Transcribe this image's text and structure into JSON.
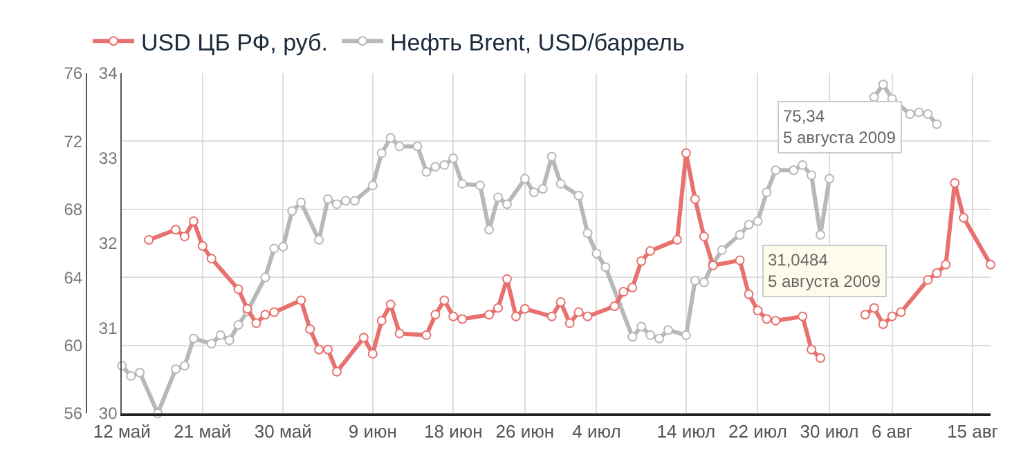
{
  "chart_data": {
    "type": "line",
    "series": [
      {
        "name": "USD ЦБ РФ, руб.",
        "color": "#e8716e",
        "axis": "y2",
        "x": [
          "2009-05-15",
          "2009-05-18",
          "2009-05-19",
          "2009-05-20",
          "2009-05-21",
          "2009-05-22",
          "2009-05-25",
          "2009-05-26",
          "2009-05-27",
          "2009-05-28",
          "2009-05-29",
          "2009-06-01",
          "2009-06-02",
          "2009-06-03",
          "2009-06-04",
          "2009-06-05",
          "2009-06-08",
          "2009-06-09",
          "2009-06-10",
          "2009-06-11",
          "2009-06-12",
          "2009-06-15",
          "2009-06-16",
          "2009-06-17",
          "2009-06-18",
          "2009-06-19",
          "2009-06-22",
          "2009-06-23",
          "2009-06-24",
          "2009-06-25",
          "2009-06-26",
          "2009-06-29",
          "2009-06-30",
          "2009-07-01",
          "2009-07-02",
          "2009-07-03",
          "2009-07-06",
          "2009-07-07",
          "2009-07-08",
          "2009-07-09",
          "2009-07-10",
          "2009-07-13",
          "2009-07-14",
          "2009-07-15",
          "2009-07-16",
          "2009-07-17",
          "2009-07-20",
          "2009-07-21",
          "2009-07-22",
          "2009-07-23",
          "2009-07-24",
          "2009-07-27",
          "2009-07-28",
          "2009-07-29",
          "2009-07-30",
          "2009-07-31",
          "2009-08-03",
          "2009-08-04",
          "2009-08-05",
          "2009-08-06",
          "2009-08-07",
          "2009-08-10",
          "2009-08-11",
          "2009-08-12",
          "2009-08-13",
          "2009-08-14",
          "2009-08-17"
        ],
        "values": [
          32.04,
          32.16,
          32.08,
          32.26,
          31.97,
          31.82,
          31.46,
          31.23,
          31.06,
          31.16,
          31.19,
          31.33,
          30.99,
          30.75,
          30.75,
          30.49,
          30.89,
          30.7,
          31.09,
          31.28,
          30.94,
          30.92,
          31.16,
          31.33,
          31.14,
          31.11,
          31.16,
          31.24,
          31.58,
          31.14,
          31.23,
          31.14,
          31.31,
          31.06,
          31.19,
          31.14,
          31.26,
          31.43,
          31.48,
          31.79,
          31.91,
          32.04,
          33.06,
          32.52,
          32.08,
          31.74,
          31.8,
          31.4,
          31.21,
          31.11,
          31.09,
          31.14,
          30.75,
          30.65,
          null,
          null,
          31.16,
          31.24,
          31.0484,
          31.14,
          31.19,
          31.57,
          31.65,
          31.75,
          32.71,
          32.3,
          31.75
        ]
      },
      {
        "name": "Нефть Brent, USD/баррель",
        "color": "#b8b8b8",
        "x": [
          "2009-05-12",
          "2009-05-13",
          "2009-05-14",
          "2009-05-16",
          "2009-05-18",
          "2009-05-19",
          "2009-05-20",
          "2009-05-22",
          "2009-05-23",
          "2009-05-24",
          "2009-05-25",
          "2009-05-26",
          "2009-05-28",
          "2009-05-29",
          "2009-05-30",
          "2009-05-31",
          "2009-06-01",
          "2009-06-03",
          "2009-06-04",
          "2009-06-05",
          "2009-06-06",
          "2009-06-07",
          "2009-06-09",
          "2009-06-10",
          "2009-06-11",
          "2009-06-12",
          "2009-06-14",
          "2009-06-15",
          "2009-06-16",
          "2009-06-17",
          "2009-06-18",
          "2009-06-19",
          "2009-06-21",
          "2009-06-22",
          "2009-06-23",
          "2009-06-24",
          "2009-06-26",
          "2009-06-27",
          "2009-06-28",
          "2009-06-29",
          "2009-06-30",
          "2009-07-02",
          "2009-07-03",
          "2009-07-04",
          "2009-07-05",
          "2009-07-08",
          "2009-07-09",
          "2009-07-10",
          "2009-07-11",
          "2009-07-12",
          "2009-07-14",
          "2009-07-15",
          "2009-07-16",
          "2009-07-17",
          "2009-07-18",
          "2009-07-20",
          "2009-07-21",
          "2009-07-22",
          "2009-07-23",
          "2009-07-24",
          "2009-07-26",
          "2009-07-27",
          "2009-07-28",
          "2009-07-29",
          "2009-07-30",
          "2009-08-01",
          "2009-08-02",
          "2009-08-03",
          "2009-08-04",
          "2009-08-05",
          "2009-08-06",
          "2009-08-08",
          "2009-08-09",
          "2009-08-10",
          "2009-08-11"
        ],
        "values": [
          58.8,
          58.2,
          58.4,
          56.0,
          58.6,
          58.8,
          60.4,
          60.1,
          60.6,
          60.3,
          61.2,
          62.0,
          64.0,
          65.7,
          65.8,
          67.9,
          68.4,
          66.2,
          68.6,
          68.3,
          68.5,
          68.5,
          69.4,
          71.3,
          72.2,
          71.7,
          71.7,
          70.2,
          70.5,
          70.6,
          71.0,
          69.5,
          69.4,
          66.8,
          68.7,
          68.3,
          69.8,
          69.0,
          69.2,
          71.1,
          69.5,
          68.8,
          66.6,
          65.4,
          64.6,
          60.5,
          61.1,
          60.6,
          60.4,
          60.9,
          60.6,
          63.8,
          63.7,
          64.8,
          65.6,
          66.5,
          67.1,
          67.3,
          69.0,
          70.3,
          70.3,
          70.6,
          70.0,
          66.5,
          69.8,
          null,
          null,
          null,
          74.6,
          75.34,
          74.5,
          73.6,
          73.7,
          73.6,
          73.0
        ]
      }
    ],
    "xlim": [
      "2009-05-12",
      "2009-08-17"
    ],
    "xticks": [
      {
        "value": "2009-05-12",
        "label": "12 май"
      },
      {
        "value": "2009-05-21",
        "label": "21 май"
      },
      {
        "value": "2009-05-30",
        "label": "30 май"
      },
      {
        "value": "2009-06-09",
        "label": "9 июн"
      },
      {
        "value": "2009-06-18",
        "label": "18 июн"
      },
      {
        "value": "2009-06-26",
        "label": "26 июн"
      },
      {
        "value": "2009-07-04",
        "label": "4 июл"
      },
      {
        "value": "2009-07-14",
        "label": "14 июл"
      },
      {
        "value": "2009-07-22",
        "label": "22 июл"
      },
      {
        "value": "2009-07-30",
        "label": "30 июл"
      },
      {
        "value": "2009-08-06",
        "label": "6 авг"
      },
      {
        "value": "2009-08-15",
        "label": "15 авг"
      }
    ],
    "ylim": [
      56,
      76
    ],
    "yticks": [
      56,
      60,
      64,
      68,
      72,
      76
    ],
    "y2lim": [
      30,
      34
    ],
    "y2ticks": [
      30,
      31,
      32,
      33,
      34
    ],
    "annotations": [
      {
        "text": "75,34\n5 августа 2009",
        "x": "2009-08-05",
        "y": 75.34
      },
      "31,0484\n5 августа 2009"
    ],
    "grid": true,
    "legend": "top left",
    "marker": "circle",
    "line_style": "solid"
  }
}
